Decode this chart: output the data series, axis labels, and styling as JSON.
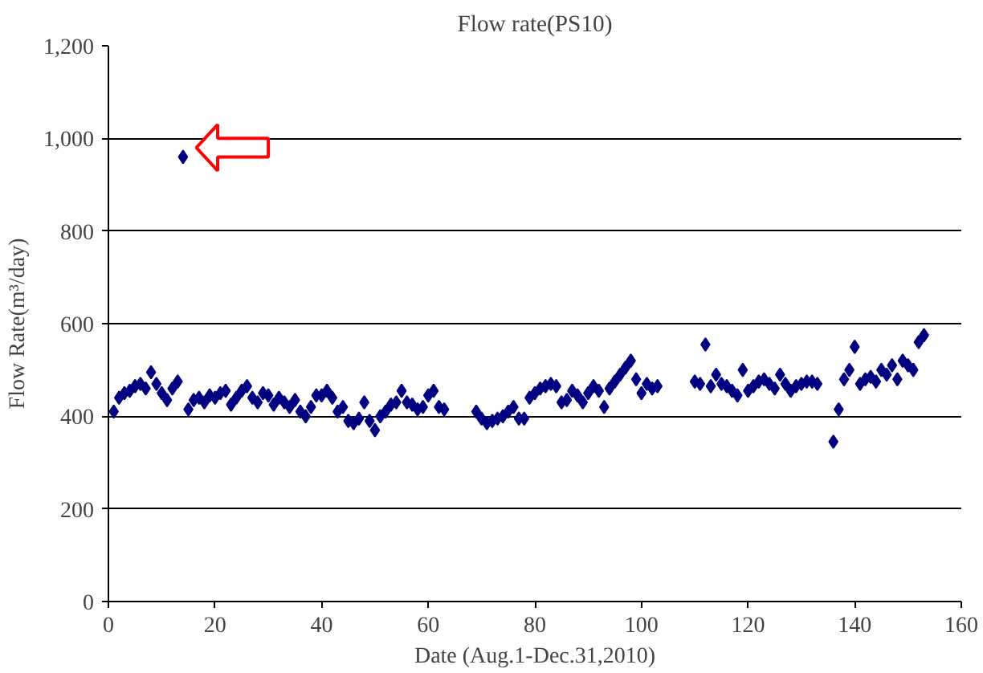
{
  "chart_data": {
    "type": "scatter",
    "title": "Flow rate(PS10)",
    "xlabel": "Date (Aug.1-Dec.31,2010)",
    "ylabel": "Flow Rate(m³/day)",
    "xlim": [
      0,
      160
    ],
    "xticks": [
      0,
      20,
      40,
      60,
      80,
      100,
      120,
      140,
      160
    ],
    "ylim": [
      0,
      1200
    ],
    "yticks": [
      0,
      200,
      400,
      600,
      800,
      {
        "value": 1000,
        "label": "1,000"
      },
      {
        "value": 1200,
        "label": "1,200"
      }
    ],
    "grid": "y",
    "marker": "diamond",
    "series": [
      {
        "color": "#000080",
        "x": [
          1,
          2,
          3,
          4,
          5,
          6,
          7,
          8,
          9,
          10,
          11,
          12,
          13,
          14,
          15,
          16,
          17,
          18,
          19,
          20,
          21,
          22,
          23,
          24,
          25,
          26,
          27,
          28,
          29,
          30,
          31,
          32,
          33,
          34,
          35,
          36,
          37,
          38,
          39,
          40,
          41,
          42,
          43,
          44,
          45,
          46,
          47,
          48,
          49,
          50,
          51,
          52,
          53,
          54,
          55,
          56,
          57,
          58,
          59,
          60,
          61,
          62,
          63,
          69,
          70,
          71,
          72,
          73,
          74,
          75,
          76,
          77,
          78,
          79,
          80,
          81,
          82,
          83,
          84,
          85,
          86,
          87,
          88,
          89,
          90,
          91,
          92,
          93,
          94,
          95,
          96,
          97,
          98,
          99,
          100,
          101,
          102,
          103,
          110,
          111,
          112,
          113,
          114,
          115,
          116,
          117,
          118,
          119,
          120,
          121,
          122,
          123,
          124,
          125,
          126,
          127,
          128,
          129,
          130,
          131,
          132,
          133,
          136,
          137,
          138,
          139,
          140,
          141,
          142,
          143,
          144,
          145,
          146,
          147,
          148,
          149,
          150,
          151,
          152,
          153
        ],
        "values": [
          410,
          440,
          450,
          455,
          465,
          470,
          460,
          495,
          470,
          450,
          435,
          460,
          475,
          960,
          415,
          435,
          440,
          430,
          445,
          440,
          450,
          455,
          425,
          440,
          455,
          465,
          440,
          430,
          450,
          445,
          425,
          440,
          430,
          420,
          435,
          410,
          400,
          420,
          445,
          445,
          455,
          440,
          410,
          420,
          390,
          385,
          395,
          430,
          390,
          370,
          400,
          410,
          425,
          430,
          455,
          430,
          425,
          415,
          420,
          445,
          455,
          420,
          415,
          410,
          395,
          385,
          390,
          395,
          400,
          410,
          420,
          395,
          395,
          440,
          450,
          460,
          465,
          470,
          465,
          430,
          435,
          455,
          445,
          430,
          450,
          465,
          455,
          420,
          460,
          475,
          490,
          505,
          520,
          480,
          450,
          470,
          460,
          465,
          475,
          470,
          555,
          465,
          490,
          470,
          465,
          455,
          445,
          500,
          455,
          465,
          475,
          480,
          470,
          460,
          490,
          470,
          455,
          465,
          470,
          475,
          475,
          470,
          345,
          415,
          480,
          500,
          550,
          470,
          480,
          485,
          475,
          500,
          490,
          510,
          480,
          520,
          510,
          500,
          560,
          575
        ]
      }
    ]
  }
}
